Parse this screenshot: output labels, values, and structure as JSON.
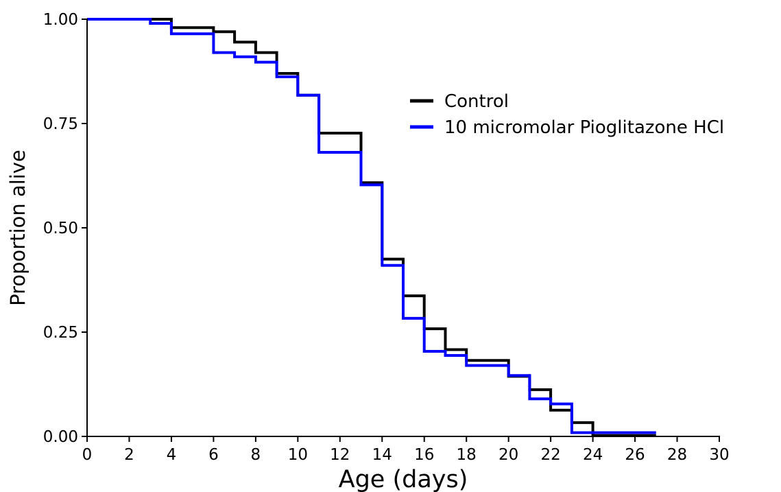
{
  "chart_data": {
    "type": "line",
    "step": true,
    "title": "",
    "xlabel": "Age (days)",
    "ylabel": "Proportion alive",
    "xlim": [
      0,
      30
    ],
    "ylim": [
      0,
      1
    ],
    "xticks": [
      0,
      2,
      4,
      6,
      8,
      10,
      12,
      14,
      16,
      18,
      20,
      22,
      24,
      26,
      28,
      30
    ],
    "xtick_labels": [
      "0",
      "2",
      "4",
      "6",
      "8",
      "10",
      "12",
      "14",
      "16",
      "18",
      "20",
      "22",
      "24",
      "26",
      "28",
      "30"
    ],
    "yticks": [
      0,
      0.25,
      0.5,
      0.75,
      1
    ],
    "ytick_labels": [
      "0.00",
      "0.25",
      "0.50",
      "0.75",
      "1.00"
    ],
    "grid": false,
    "legend_position": "top-right",
    "series": [
      {
        "name": "Control",
        "color": "#000000",
        "x": [
          0,
          4,
          6,
          7,
          8,
          9,
          10,
          11,
          13,
          14,
          15,
          16,
          17,
          18,
          20,
          21,
          22,
          23,
          24,
          27
        ],
        "y": [
          1.0,
          0.98,
          0.97,
          0.945,
          0.92,
          0.87,
          0.818,
          0.727,
          0.608,
          0.425,
          0.337,
          0.258,
          0.208,
          0.182,
          0.144,
          0.112,
          0.063,
          0.033,
          0.002,
          0.002
        ]
      },
      {
        "name": "10 micromolar Pioglitazone HCl",
        "color": "#0000ff",
        "x": [
          0,
          3,
          4,
          6,
          7,
          8,
          9,
          10,
          11,
          13,
          14,
          15,
          16,
          17,
          18,
          20,
          21,
          22,
          23,
          27
        ],
        "y": [
          1.0,
          0.99,
          0.965,
          0.92,
          0.91,
          0.897,
          0.862,
          0.818,
          0.681,
          0.603,
          0.41,
          0.283,
          0.204,
          0.194,
          0.17,
          0.146,
          0.09,
          0.078,
          0.009,
          0.009
        ]
      }
    ]
  }
}
